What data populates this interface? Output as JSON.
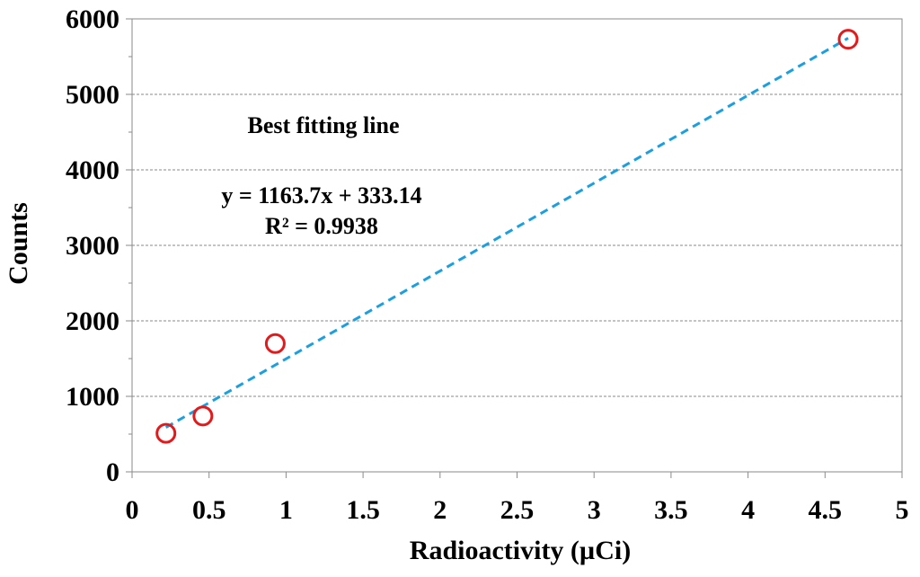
{
  "chart_data": {
    "type": "scatter",
    "title": "",
    "xlabel": "Radioactivity (µCi)",
    "ylabel": "Counts",
    "xlim": [
      0,
      5
    ],
    "ylim": [
      0,
      6000
    ],
    "x_ticks": [
      0,
      0.5,
      1,
      1.5,
      2,
      2.5,
      3,
      3.5,
      4,
      4.5,
      5
    ],
    "x_tick_labels": [
      "0",
      "0.5",
      "1",
      "1.5",
      "2",
      "2.5",
      "3",
      "3.5",
      "4",
      "4.5",
      "5"
    ],
    "y_ticks": [
      0,
      1000,
      2000,
      3000,
      4000,
      5000,
      6000
    ],
    "y_tick_labels": [
      "0",
      "1000",
      "2000",
      "3000",
      "4000",
      "5000",
      "6000"
    ],
    "grid": "horizontal dashed",
    "series": [
      {
        "name": "Counts",
        "x": [
          0.22,
          0.46,
          0.93,
          4.65
        ],
        "y": [
          510,
          740,
          1700,
          5730
        ],
        "marker": "open circle",
        "color": "#e31a1c"
      }
    ],
    "trendline": {
      "type": "linear",
      "slope": 1163.7,
      "intercept": 333.14,
      "x_range": [
        0.22,
        4.65
      ],
      "color": "#1aa0e0",
      "style": "dashed"
    },
    "annotations": {
      "caption": "Best fitting line",
      "equation": "y = 1163.7x + 333.14",
      "r_squared": "R² = 0.9938"
    }
  }
}
